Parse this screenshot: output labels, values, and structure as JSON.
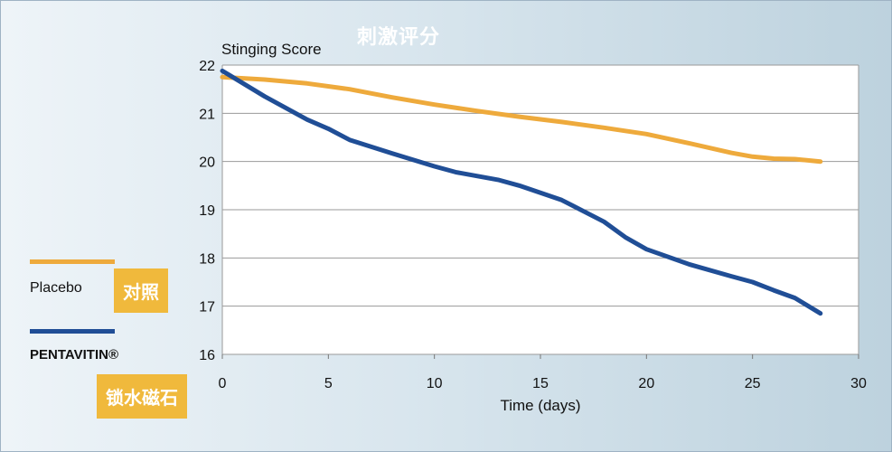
{
  "chart_data": {
    "type": "line",
    "title": "刺激评分",
    "ylabel": "Stinging Score",
    "xlabel": "Time (days)",
    "xlim": [
      0,
      30
    ],
    "ylim": [
      16,
      22
    ],
    "xticks": [
      0,
      5,
      10,
      15,
      20,
      25,
      30
    ],
    "yticks": [
      16,
      17,
      18,
      19,
      20,
      21,
      22
    ],
    "grid": true,
    "legend_position": "left",
    "series": [
      {
        "name": "Placebo",
        "label_cn": "对照",
        "color": "#eeaa3c",
        "x": [
          0,
          2,
          4,
          6,
          8,
          10,
          12,
          14,
          16,
          18,
          20,
          22,
          24,
          25,
          26,
          27,
          28.2
        ],
        "y": [
          21.75,
          21.7,
          21.62,
          21.5,
          21.33,
          21.18,
          21.05,
          20.93,
          20.82,
          20.7,
          20.57,
          20.38,
          20.18,
          20.1,
          20.06,
          20.05,
          20.0
        ]
      },
      {
        "name": "PENTAVITIN®",
        "label_cn": "锁水磁石",
        "color": "#204e96",
        "x": [
          0,
          2,
          4,
          5,
          6,
          8,
          10,
          11,
          13,
          14,
          16,
          18,
          19,
          20,
          22,
          24,
          25,
          26,
          27,
          28.2
        ],
        "y": [
          21.88,
          21.35,
          20.87,
          20.68,
          20.45,
          20.17,
          19.9,
          19.78,
          19.62,
          19.5,
          19.2,
          18.75,
          18.43,
          18.18,
          17.87,
          17.62,
          17.5,
          17.33,
          17.17,
          16.85
        ]
      }
    ]
  }
}
